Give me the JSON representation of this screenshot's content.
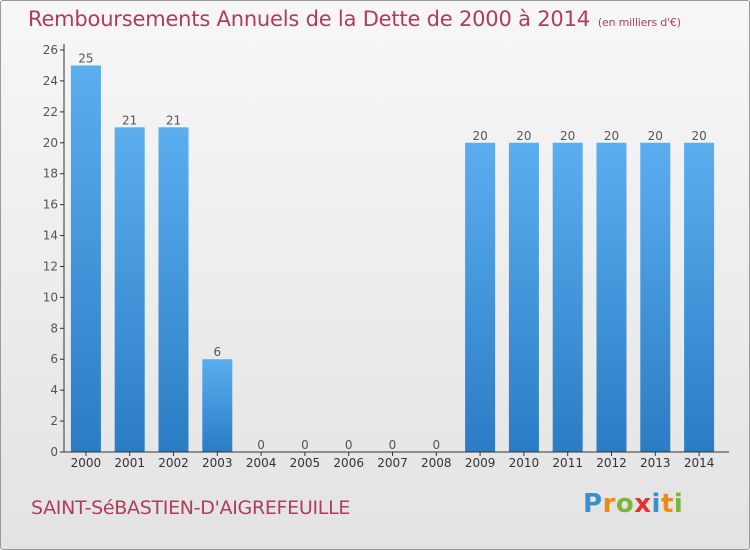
{
  "title": "Remboursements Annuels de la Dette de 2000 à 2014",
  "subtitle": "(en milliers d'€)",
  "commune": "SAINT-SéBASTIEN-D'AIGREFEUILLE",
  "brand": {
    "letters": [
      "P",
      "r",
      "o",
      "x",
      "i",
      "t",
      "i"
    ],
    "colors": [
      "#3a8fd0",
      "#f08a16",
      "#7ab638",
      "#e3322b",
      "#3a8fd0",
      "#f08a16",
      "#7ab638"
    ]
  },
  "colors": {
    "bar_top": "#5aaef0",
    "bar_bottom": "#2a7dc4",
    "axis": "#333333",
    "text": "#555555",
    "title": "#b03c5c"
  },
  "chart_data": {
    "type": "bar",
    "title": "Remboursements Annuels de la Dette de 2000 à 2014",
    "xlabel": "",
    "ylabel": "",
    "categories": [
      "2000",
      "2001",
      "2002",
      "2003",
      "2004",
      "2005",
      "2006",
      "2007",
      "2008",
      "2009",
      "2010",
      "2011",
      "2012",
      "2013",
      "2014"
    ],
    "values": [
      25,
      21,
      21,
      6,
      0,
      0,
      0,
      0,
      0,
      20,
      20,
      20,
      20,
      20,
      20
    ],
    "ylim": [
      0,
      26
    ],
    "yticks": [
      0,
      2,
      4,
      6,
      8,
      10,
      12,
      14,
      16,
      18,
      20,
      22,
      24,
      26
    ],
    "grid": false,
    "legend": "none"
  }
}
